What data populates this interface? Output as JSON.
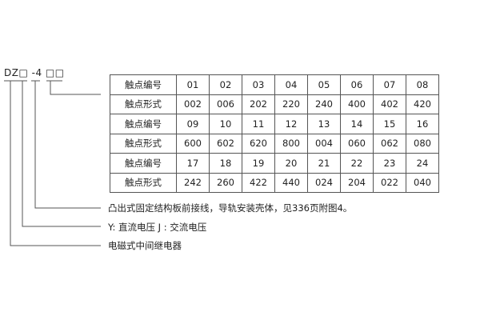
{
  "model_code": "DZ□ -4 □□",
  "table": {
    "rows": [
      {
        "header": "触点编号",
        "cells": [
          "01",
          "02",
          "03",
          "04",
          "05",
          "06",
          "07",
          "08"
        ]
      },
      {
        "header": "触点形式",
        "cells": [
          "002",
          "006",
          "202",
          "220",
          "240",
          "400",
          "402",
          "420"
        ]
      },
      {
        "header": "触点编号",
        "cells": [
          "09",
          "10",
          "11",
          "12",
          "13",
          "14",
          "15",
          "16"
        ]
      },
      {
        "header": "触点形式",
        "cells": [
          "600",
          "602",
          "620",
          "800",
          "004",
          "060",
          "062",
          "080"
        ]
      },
      {
        "header": "触点编号",
        "cells": [
          "17",
          "18",
          "19",
          "20",
          "21",
          "22",
          "23",
          "24"
        ]
      },
      {
        "header": "触点形式",
        "cells": [
          "242",
          "260",
          "422",
          "440",
          "024",
          "204",
          "022",
          "040"
        ]
      }
    ]
  },
  "labels": {
    "mounting": "凸出式固定结构板前接线，导轨安装壳体，见336页附图4。",
    "current": "Y: 直流电压   J : 交流电压",
    "type": "电磁式中间继电器"
  }
}
